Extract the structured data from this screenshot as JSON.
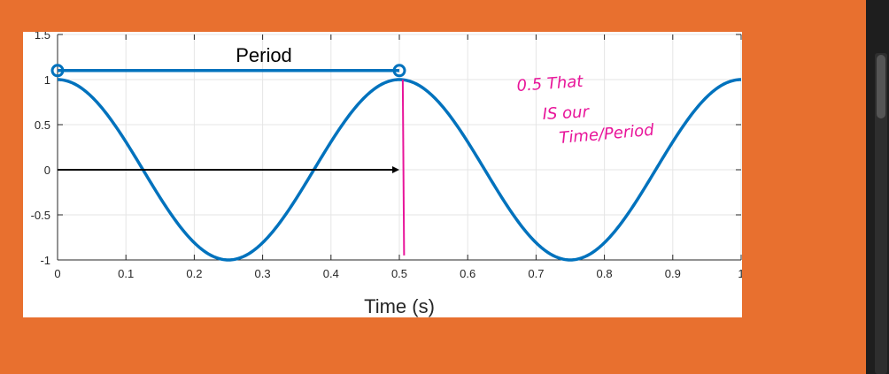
{
  "colors": {
    "background": "#E8702F",
    "card": "#FFFFFF",
    "curve": "#0072BD",
    "grid": "#E5E5E5",
    "axis": "#262626",
    "arrow": "#000000",
    "pen": "#E8159A",
    "dark_panel": "#1E1E1E"
  },
  "chart_data": {
    "type": "line",
    "xlabel": "Time (s)",
    "ylabel": "",
    "title": "",
    "xlim": [
      0,
      1
    ],
    "ylim": [
      -1,
      1.5
    ],
    "xticks": [
      0,
      0.1,
      0.2,
      0.3,
      0.4,
      0.5,
      0.6,
      0.7,
      0.8,
      0.9,
      1
    ],
    "xtick_labels": [
      "0",
      "0.1",
      "0.2",
      "0.3",
      "0.4",
      "0.5",
      "0.6",
      "0.7",
      "0.8",
      "0.9",
      "1"
    ],
    "yticks": [
      -1,
      -0.5,
      0,
      0.5,
      1,
      1.5
    ],
    "ytick_labels": [
      "-1",
      "-0.5",
      "0",
      "0.5",
      "1",
      "1.5"
    ],
    "grid": true,
    "series": [
      {
        "function": "cos(2*pi*2*t)",
        "x": [
          0,
          0.05,
          0.1,
          0.15,
          0.2,
          0.25,
          0.3,
          0.35,
          0.4,
          0.45,
          0.5,
          0.55,
          0.6,
          0.65,
          0.7,
          0.75,
          0.8,
          0.85,
          0.9,
          0.95,
          1
        ],
        "y": [
          1,
          0.81,
          0.31,
          -0.31,
          -0.81,
          -1,
          -0.81,
          -0.31,
          0.31,
          0.81,
          1,
          0.81,
          0.31,
          -0.31,
          -0.81,
          -1,
          -0.81,
          -0.31,
          0.31,
          0.81,
          1
        ]
      }
    ],
    "annotations": {
      "period_bracket": {
        "label": "Period",
        "x_start": 0,
        "x_end": 0.5,
        "y": 1.1
      },
      "arrow": {
        "x_start": 0,
        "x_end": 0.5,
        "y": 0
      },
      "vertical_mark": {
        "x": 0.505,
        "y_top": 1,
        "y_bottom": -0.95
      }
    }
  },
  "handwritten_note": {
    "lines": [
      "0.5 That",
      "IS our",
      "Time/Period"
    ]
  }
}
